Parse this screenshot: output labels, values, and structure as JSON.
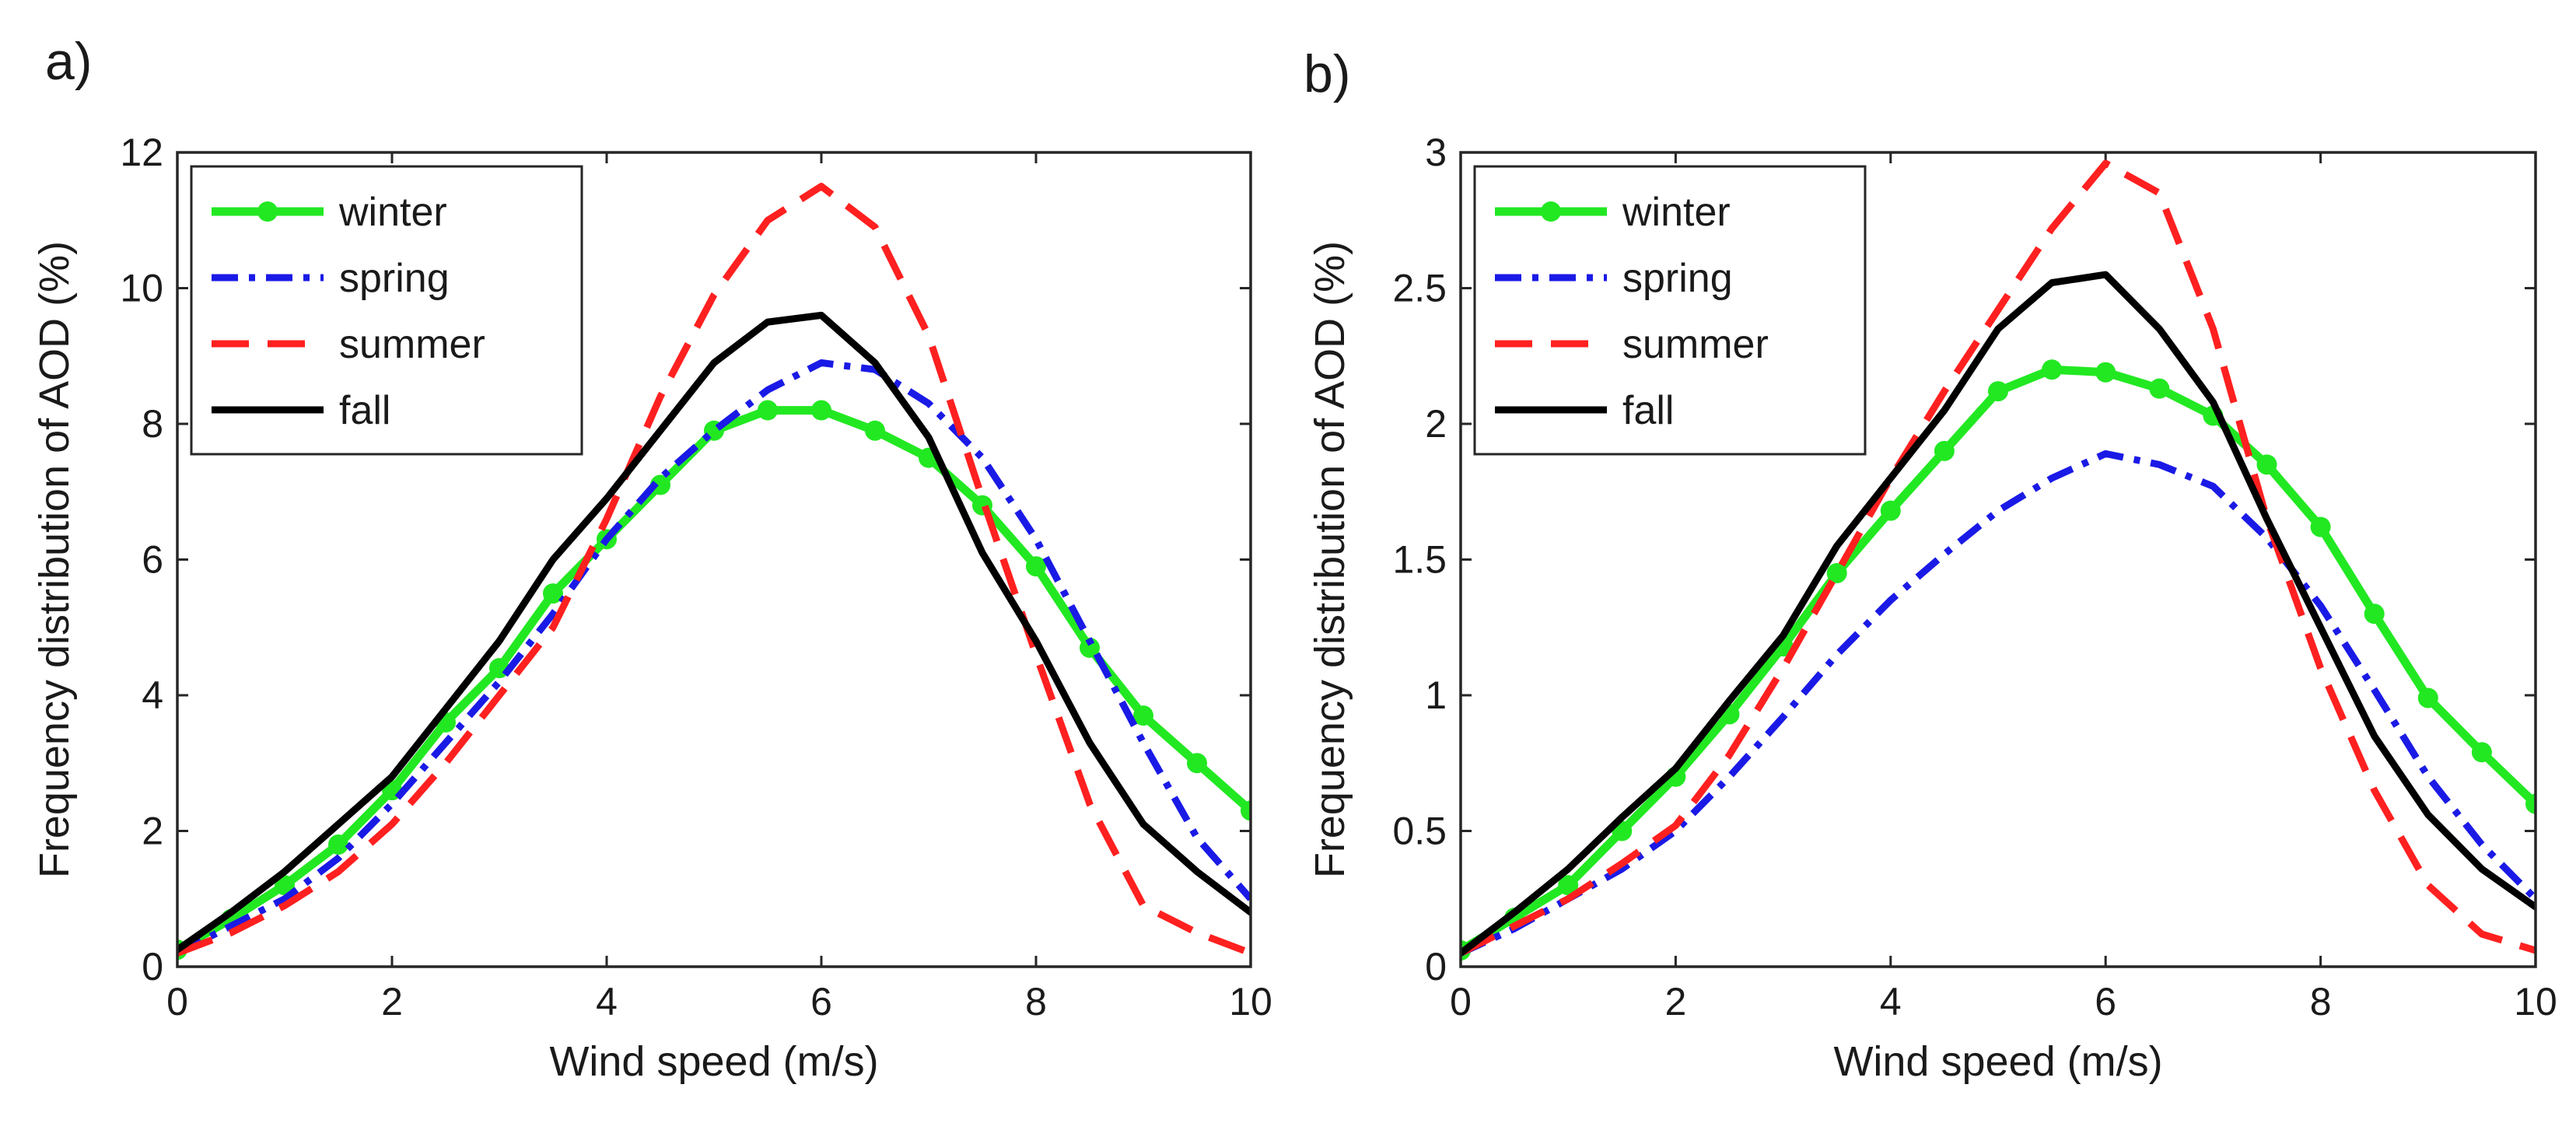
{
  "chart_data": [
    {
      "type": "line",
      "panel_label": "a)",
      "xlabel": "Wind speed (m/s)",
      "ylabel": "Frequency distribution of AOD (%)",
      "xlim": [
        0,
        10
      ],
      "ylim": [
        0,
        12
      ],
      "xticks": [
        0,
        2,
        4,
        6,
        8,
        10
      ],
      "yticks": [
        0,
        2,
        4,
        6,
        8,
        10,
        12
      ],
      "legend_position": "top-left",
      "x": [
        0,
        0.5,
        1,
        1.5,
        2,
        2.5,
        3,
        3.5,
        4,
        4.5,
        5,
        5.5,
        6,
        6.5,
        7,
        7.5,
        8,
        8.5,
        9,
        9.5,
        10
      ],
      "series": [
        {
          "name": "winter",
          "color": "#22e822",
          "style": "solid-marker",
          "values": [
            0.25,
            0.7,
            1.2,
            1.8,
            2.6,
            3.6,
            4.4,
            5.5,
            6.3,
            7.1,
            7.9,
            8.2,
            8.2,
            7.9,
            7.5,
            6.8,
            5.9,
            4.7,
            3.7,
            3.0,
            2.3
          ]
        },
        {
          "name": "spring",
          "color": "#1a1ae6",
          "style": "dashdot",
          "values": [
            0.2,
            0.6,
            1.0,
            1.6,
            2.4,
            3.3,
            4.2,
            5.2,
            6.3,
            7.2,
            7.9,
            8.5,
            8.9,
            8.8,
            8.3,
            7.5,
            6.3,
            4.8,
            3.3,
            1.9,
            1.0
          ]
        },
        {
          "name": "summer",
          "color": "#ff2020",
          "style": "dash",
          "values": [
            0.2,
            0.5,
            0.9,
            1.4,
            2.1,
            3.0,
            4.0,
            5.0,
            6.6,
            8.4,
            9.9,
            11.0,
            11.5,
            10.9,
            9.3,
            6.9,
            4.6,
            2.4,
            0.9,
            0.5,
            0.2
          ]
        },
        {
          "name": "fall",
          "color": "#000000",
          "style": "solid",
          "values": [
            0.25,
            0.8,
            1.4,
            2.1,
            2.8,
            3.8,
            4.8,
            6.0,
            6.9,
            7.9,
            8.9,
            9.5,
            9.6,
            8.9,
            7.8,
            6.1,
            4.8,
            3.3,
            2.1,
            1.4,
            0.8
          ]
        }
      ]
    },
    {
      "type": "line",
      "panel_label": "b)",
      "xlabel": "Wind speed (m/s)",
      "ylabel": "Frequency distribution of AOD (%)",
      "xlim": [
        0,
        10
      ],
      "ylim": [
        0,
        3
      ],
      "xticks": [
        0,
        2,
        4,
        6,
        8,
        10
      ],
      "yticks": [
        0,
        0.5,
        1,
        1.5,
        2,
        2.5,
        3
      ],
      "legend_position": "top-left",
      "x": [
        0,
        0.5,
        1,
        1.5,
        2,
        2.5,
        3,
        3.5,
        4,
        4.5,
        5,
        5.5,
        6,
        6.5,
        7,
        7.5,
        8,
        8.5,
        9,
        9.5,
        10
      ],
      "series": [
        {
          "name": "winter",
          "color": "#22e822",
          "style": "solid-marker",
          "values": [
            0.06,
            0.18,
            0.3,
            0.5,
            0.7,
            0.93,
            1.18,
            1.45,
            1.68,
            1.9,
            2.12,
            2.2,
            2.19,
            2.13,
            2.03,
            1.85,
            1.62,
            1.3,
            0.99,
            0.79,
            0.6
          ]
        },
        {
          "name": "spring",
          "color": "#1a1ae6",
          "style": "dashdot",
          "values": [
            0.05,
            0.14,
            0.25,
            0.36,
            0.5,
            0.7,
            0.92,
            1.15,
            1.35,
            1.52,
            1.68,
            1.8,
            1.89,
            1.85,
            1.77,
            1.58,
            1.33,
            1.02,
            0.7,
            0.45,
            0.25
          ]
        },
        {
          "name": "summer",
          "color": "#ff2020",
          "style": "dash",
          "values": [
            0.05,
            0.15,
            0.25,
            0.38,
            0.52,
            0.78,
            1.1,
            1.45,
            1.8,
            2.12,
            2.42,
            2.72,
            2.96,
            2.85,
            2.35,
            1.65,
            1.1,
            0.65,
            0.3,
            0.12,
            0.06
          ]
        },
        {
          "name": "fall",
          "color": "#000000",
          "style": "solid",
          "values": [
            0.05,
            0.2,
            0.36,
            0.55,
            0.73,
            0.98,
            1.22,
            1.55,
            1.8,
            2.05,
            2.35,
            2.52,
            2.55,
            2.35,
            2.08,
            1.65,
            1.25,
            0.85,
            0.56,
            0.36,
            0.22
          ]
        }
      ]
    }
  ]
}
